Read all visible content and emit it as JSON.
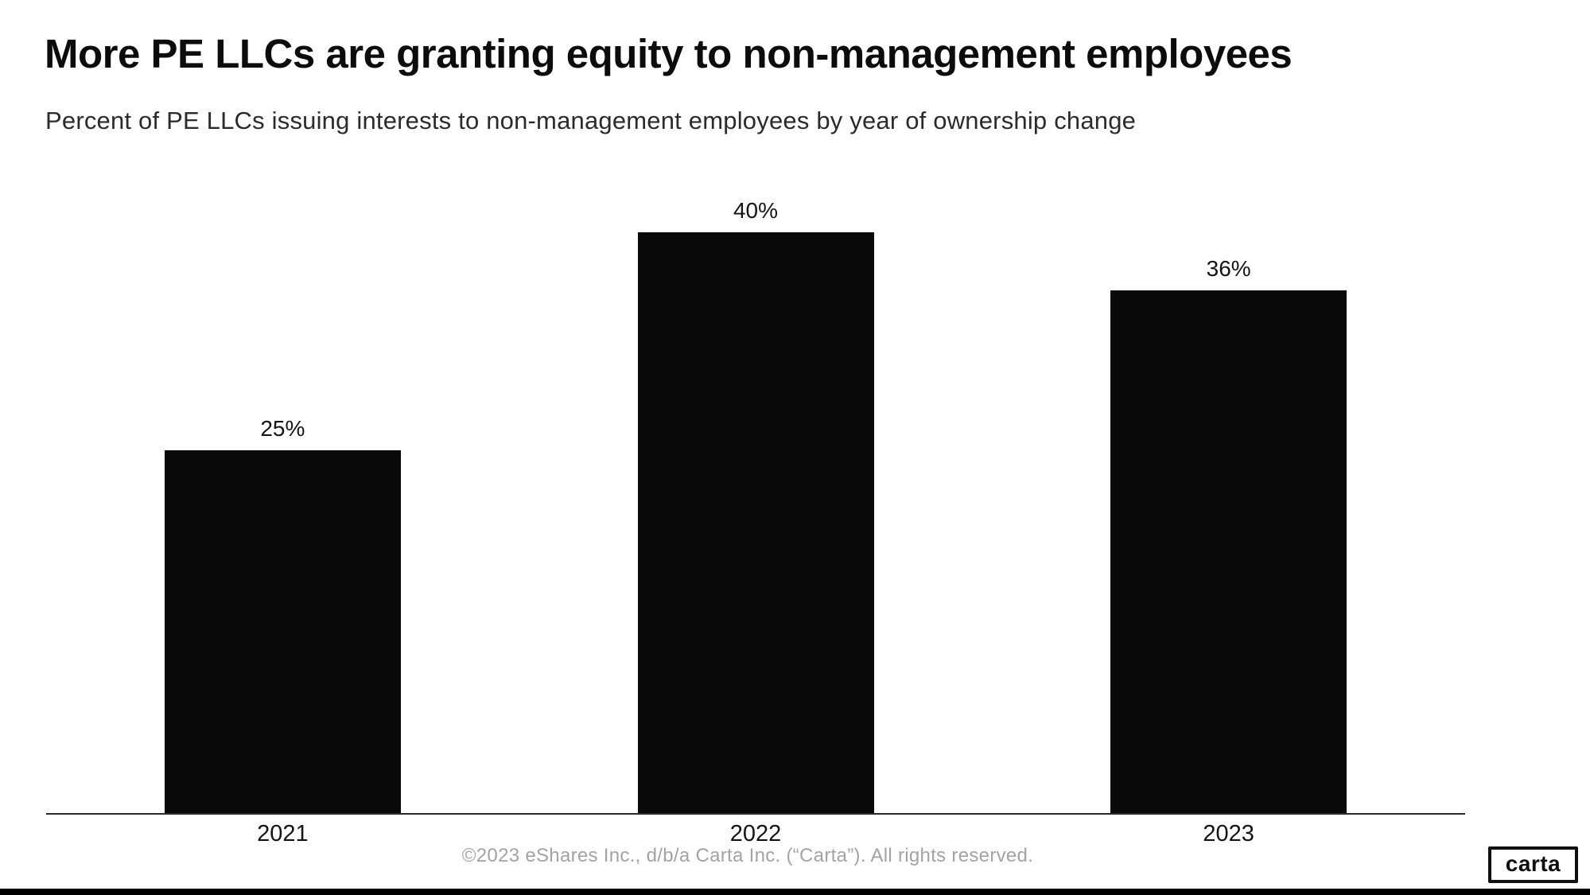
{
  "header": {
    "title": "More PE LLCs are granting equity to non-management employees",
    "subtitle": "Percent of PE LLCs issuing interests to non-management employees by year of ownership change"
  },
  "chart_data": {
    "type": "bar",
    "categories": [
      "2021",
      "2022",
      "2023"
    ],
    "values": [
      25,
      40,
      36
    ],
    "value_labels": [
      "25%",
      "40%",
      "36%"
    ],
    "title": "More PE LLCs are granting equity to non-management employees",
    "subtitle": "Percent of PE LLCs issuing interests to non-management employees by year of ownership change",
    "xlabel": "",
    "ylabel": "",
    "ylim": [
      0,
      40
    ],
    "grid": false,
    "legend": false,
    "bar_color": "#0a0a0a",
    "axis_line_color": "#2b2b2b",
    "data_label_position": "above-bar"
  },
  "footer": {
    "copyright": "©2023 eShares Inc., d/b/a Carta Inc. (“Carta”). All rights reserved.",
    "logo_text": "carta"
  },
  "colors": {
    "background": "#ffffff",
    "bar": "#0a0a0a",
    "axis": "#2b2b2b",
    "title_text": "#0c0c0c",
    "subtitle_text": "#2b2b2b",
    "footer_text": "#a3a3a3",
    "bottom_band": "#000000"
  }
}
